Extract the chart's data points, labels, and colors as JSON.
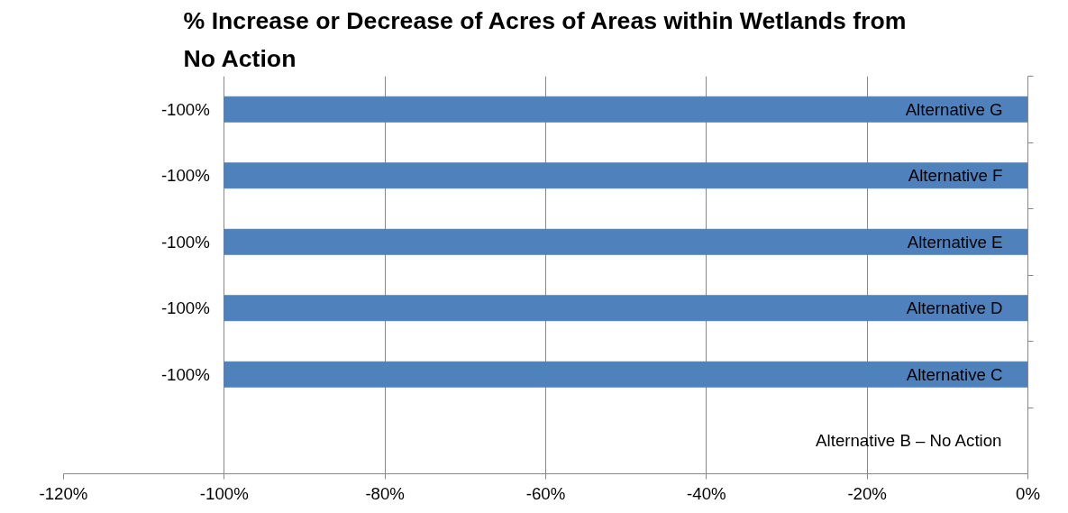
{
  "chart_data": {
    "type": "bar",
    "orientation": "horizontal",
    "title": "% Increase or Decrease of Acres of Areas within Wetlands from\nNo Action",
    "categories": [
      "Alternative G",
      "Alternative F",
      "Alternative E",
      "Alternative D",
      "Alternative C",
      "Alternative B – No Action"
    ],
    "values": [
      -100,
      -100,
      -100,
      -100,
      -100,
      0
    ],
    "value_labels": [
      "-100%",
      "-100%",
      "-100%",
      "-100%",
      "-100%",
      null
    ],
    "color": "#4f81bd",
    "xlim": [
      -120,
      0
    ],
    "xticks": [
      {
        "value": -120,
        "label": "-120%"
      },
      {
        "value": -100,
        "label": "-100%"
      },
      {
        "value": -80,
        "label": "-80%"
      },
      {
        "value": -60,
        "label": "-60%"
      },
      {
        "value": -40,
        "label": "-40%"
      },
      {
        "value": -20,
        "label": "-20%"
      },
      {
        "value": 0,
        "label": "0%"
      }
    ],
    "grid": "x"
  }
}
